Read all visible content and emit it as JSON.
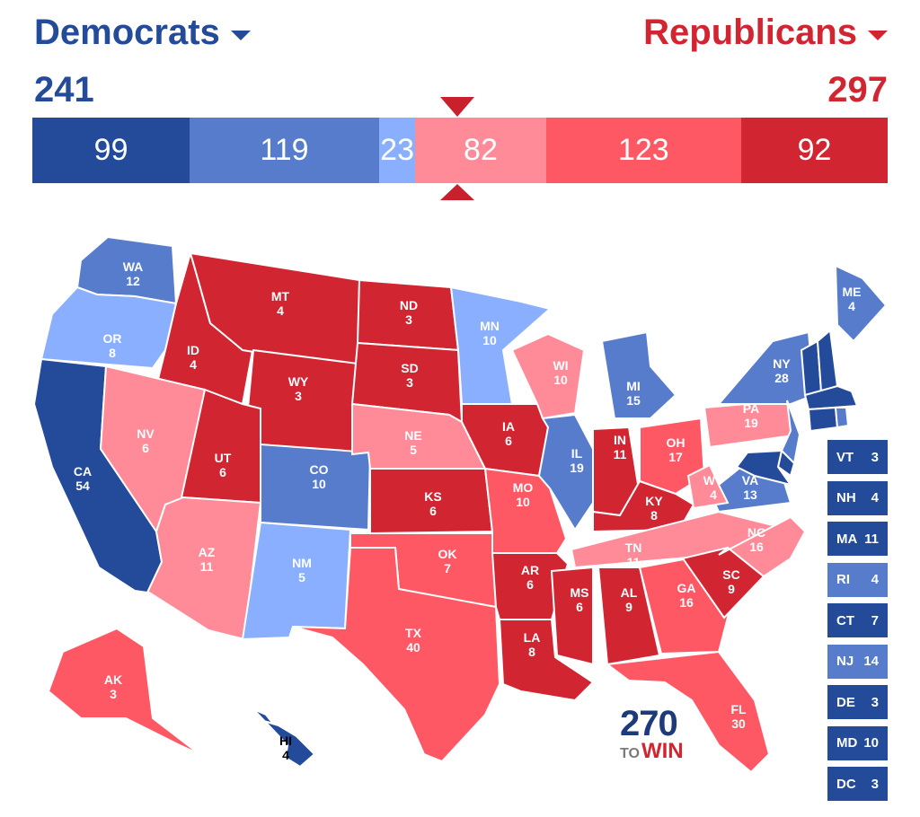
{
  "header": {
    "dem_label": "Democrats",
    "rep_label": "Republicans",
    "dem_total": "241",
    "rep_total": "297"
  },
  "colors": {
    "safe_dem": "#244a9a",
    "likely_dem": "#577ccc",
    "lean_dem": "#8aafff",
    "lean_rep": "#ff8b98",
    "likely_rep": "#ff5865",
    "safe_rep": "#d22532"
  },
  "bar": [
    {
      "value": 99,
      "label": "99",
      "rating": "safe_dem"
    },
    {
      "value": 119,
      "label": "119",
      "rating": "likely_dem"
    },
    {
      "value": 23,
      "label": "23",
      "rating": "lean_dem"
    },
    {
      "value": 82,
      "label": "82",
      "rating": "lean_rep"
    },
    {
      "value": 123,
      "label": "123",
      "rating": "likely_rep"
    },
    {
      "value": 92,
      "label": "92",
      "rating": "safe_rep"
    }
  ],
  "states": [
    {
      "code": "WA",
      "ev": "12",
      "rating": "likely_dem"
    },
    {
      "code": "OR",
      "ev": "8",
      "rating": "lean_dem"
    },
    {
      "code": "CA",
      "ev": "54",
      "rating": "safe_dem"
    },
    {
      "code": "ID",
      "ev": "4",
      "rating": "safe_rep"
    },
    {
      "code": "NV",
      "ev": "6",
      "rating": "lean_rep"
    },
    {
      "code": "MT",
      "ev": "4",
      "rating": "safe_rep"
    },
    {
      "code": "WY",
      "ev": "3",
      "rating": "safe_rep"
    },
    {
      "code": "UT",
      "ev": "6",
      "rating": "safe_rep"
    },
    {
      "code": "AZ",
      "ev": "11",
      "rating": "lean_rep"
    },
    {
      "code": "CO",
      "ev": "10",
      "rating": "likely_dem"
    },
    {
      "code": "NM",
      "ev": "5",
      "rating": "lean_dem"
    },
    {
      "code": "ND",
      "ev": "3",
      "rating": "safe_rep"
    },
    {
      "code": "SD",
      "ev": "3",
      "rating": "safe_rep"
    },
    {
      "code": "NE",
      "ev": "5",
      "rating": "lean_rep"
    },
    {
      "code": "KS",
      "ev": "6",
      "rating": "safe_rep"
    },
    {
      "code": "OK",
      "ev": "7",
      "rating": "likely_rep"
    },
    {
      "code": "TX",
      "ev": "40",
      "rating": "likely_rep"
    },
    {
      "code": "MN",
      "ev": "10",
      "rating": "lean_dem"
    },
    {
      "code": "IA",
      "ev": "6",
      "rating": "safe_rep"
    },
    {
      "code": "MO",
      "ev": "10",
      "rating": "likely_rep"
    },
    {
      "code": "AR",
      "ev": "6",
      "rating": "safe_rep"
    },
    {
      "code": "LA",
      "ev": "8",
      "rating": "safe_rep"
    },
    {
      "code": "WI",
      "ev": "10",
      "rating": "lean_rep"
    },
    {
      "code": "IL",
      "ev": "19",
      "rating": "likely_dem"
    },
    {
      "code": "MI",
      "ev": "15",
      "rating": "likely_dem"
    },
    {
      "code": "IN",
      "ev": "11",
      "rating": "safe_rep"
    },
    {
      "code": "OH",
      "ev": "17",
      "rating": "likely_rep"
    },
    {
      "code": "KY",
      "ev": "8",
      "rating": "safe_rep"
    },
    {
      "code": "TN",
      "ev": "11",
      "rating": "lean_rep"
    },
    {
      "code": "MS",
      "ev": "6",
      "rating": "safe_rep"
    },
    {
      "code": "AL",
      "ev": "9",
      "rating": "safe_rep"
    },
    {
      "code": "GA",
      "ev": "16",
      "rating": "likely_rep"
    },
    {
      "code": "FL",
      "ev": "30",
      "rating": "likely_rep"
    },
    {
      "code": "SC",
      "ev": "9",
      "rating": "safe_rep"
    },
    {
      "code": "NC",
      "ev": "16",
      "rating": "lean_rep"
    },
    {
      "code": "VA",
      "ev": "13",
      "rating": "likely_dem"
    },
    {
      "code": "WV",
      "ev": "4",
      "rating": "lean_rep"
    },
    {
      "code": "PA",
      "ev": "19",
      "rating": "lean_rep"
    },
    {
      "code": "NY",
      "ev": "28",
      "rating": "likely_dem"
    },
    {
      "code": "ME",
      "ev": "4",
      "rating": "likely_dem"
    },
    {
      "code": "AK",
      "ev": "3",
      "rating": "likely_rep"
    },
    {
      "code": "HI",
      "ev": "4",
      "rating": "safe_dem"
    }
  ],
  "small_states": [
    {
      "code": "VT",
      "ev": "3",
      "rating": "safe_dem"
    },
    {
      "code": "NH",
      "ev": "4",
      "rating": "safe_dem"
    },
    {
      "code": "MA",
      "ev": "11",
      "rating": "safe_dem"
    },
    {
      "code": "RI",
      "ev": "4",
      "rating": "likely_dem"
    },
    {
      "code": "CT",
      "ev": "7",
      "rating": "safe_dem"
    },
    {
      "code": "NJ",
      "ev": "14",
      "rating": "likely_dem"
    },
    {
      "code": "DE",
      "ev": "3",
      "rating": "safe_dem"
    },
    {
      "code": "MD",
      "ev": "10",
      "rating": "safe_dem"
    },
    {
      "code": "DC",
      "ev": "3",
      "rating": "safe_dem"
    }
  ],
  "logo": {
    "number": "270",
    "to": "TO",
    "win": "WIN"
  }
}
